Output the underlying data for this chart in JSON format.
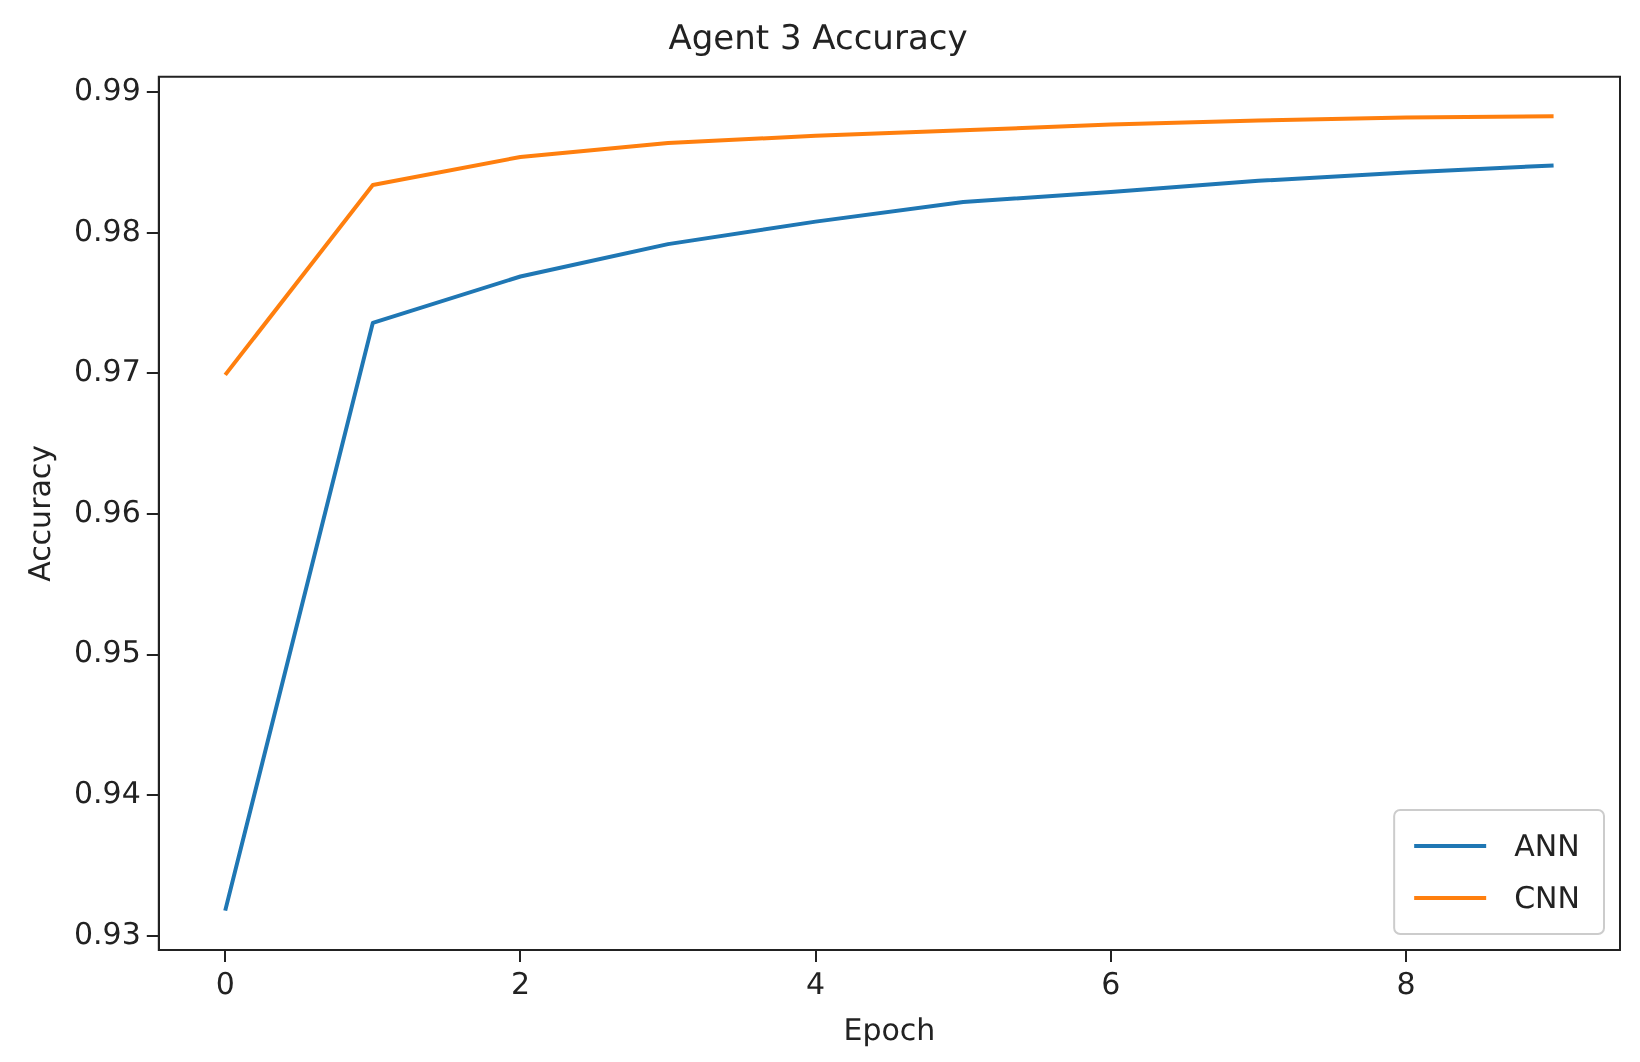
{
  "chart_data": {
    "type": "line",
    "title": "Agent 3 Accuracy",
    "xlabel": "Epoch",
    "ylabel": "Accuracy",
    "x": [
      0,
      1,
      2,
      3,
      4,
      5,
      6,
      7,
      8,
      9
    ],
    "series": [
      {
        "name": "ANN",
        "color": "#1f77b4",
        "values": [
          0.9318,
          0.9736,
          0.9769,
          0.9792,
          0.9808,
          0.9822,
          0.9829,
          0.9837,
          0.9843,
          0.9848
        ]
      },
      {
        "name": "CNN",
        "color": "#ff7f0e",
        "values": [
          0.9699,
          0.9834,
          0.9854,
          0.9864,
          0.9869,
          0.9873,
          0.9877,
          0.988,
          0.9882,
          0.9883
        ]
      }
    ],
    "xlim": [
      -0.45,
      9.45
    ],
    "ylim": [
      0.929,
      0.9911
    ],
    "xticks": [
      0,
      2,
      4,
      6,
      8
    ],
    "yticks": [
      0.93,
      0.94,
      0.95,
      0.96,
      0.97,
      0.98,
      0.99
    ],
    "grid": false,
    "legend": "bottom right",
    "marker": "none",
    "line_style": "solid"
  }
}
